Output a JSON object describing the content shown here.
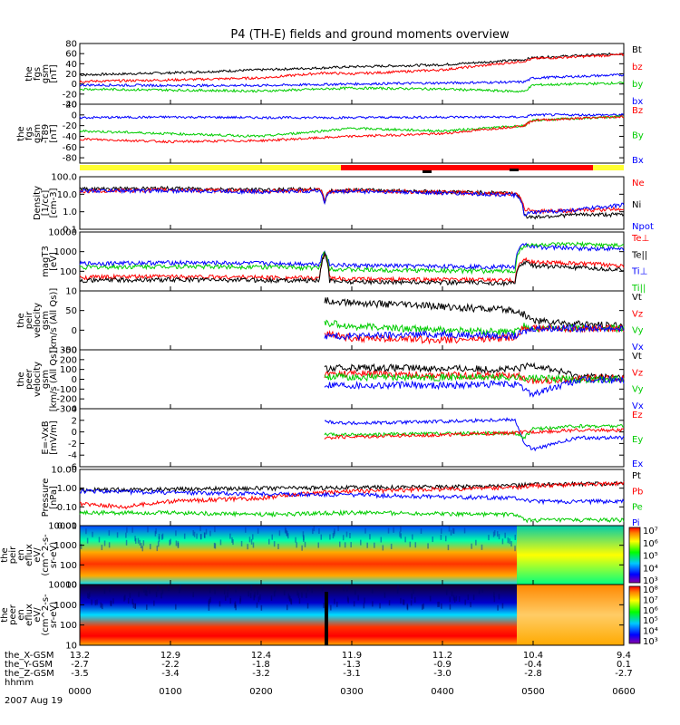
{
  "chart_data": {
    "type": "line",
    "title": "P4 (TH-E) fields and ground moments overview",
    "x_ticks": [
      "0000",
      "0100",
      "0200",
      "0300",
      "0400",
      "0500",
      "0600"
    ],
    "x_label_rows": [
      {
        "name": "the_X-GSM",
        "values": [
          "13.2",
          "12.9",
          "12.4",
          "11.9",
          "11.2",
          "10.4",
          "9.4"
        ]
      },
      {
        "name": "the_Y-GSM",
        "values": [
          "-2.7",
          "-2.2",
          "-1.8",
          "-1.3",
          "-0.9",
          "-0.4",
          "0.1"
        ]
      },
      {
        "name": "the_Z-GSM",
        "values": [
          "-3.5",
          "-3.4",
          "-3.2",
          "-3.1",
          "-3.0",
          "-2.8",
          "-2.7"
        ]
      },
      {
        "name": "hhmm",
        "values": []
      }
    ],
    "date": "2007 Aug 19",
    "panels": [
      {
        "key": "fgs_gsm",
        "ylabel": [
          "the",
          "fgs",
          "gsm",
          "[nT]"
        ],
        "ylim": [
          -40,
          80
        ],
        "yticks": [
          "80",
          "60",
          "40",
          "20",
          "0",
          "-20",
          "-40"
        ],
        "legend": [
          {
            "text": "Bt",
            "color": "#000000"
          },
          {
            "text": "bz",
            "color": "#ff0000"
          },
          {
            "text": "by",
            "color": "#00cc00"
          },
          {
            "text": "bx",
            "color": "#0000ff"
          }
        ]
      },
      {
        "key": "fgs_t89",
        "ylabel": [
          "the",
          "fgs",
          "gsm",
          "-T89",
          "[nT]"
        ],
        "ylim": [
          -90,
          20
        ],
        "yticks": [
          "20",
          "0",
          "-20",
          "-40",
          "-60",
          "-80"
        ],
        "legend": [
          {
            "text": "Bz",
            "color": "#ff0000"
          },
          {
            "text": "By",
            "color": "#00cc00"
          },
          {
            "text": "Bx",
            "color": "#0000ff"
          }
        ]
      },
      {
        "key": "density",
        "ylabel": [
          "Density",
          "[1/cc]",
          "[cm-3]"
        ],
        "log": true,
        "ylim": [
          0.1,
          100
        ],
        "yticks": [
          "100.0",
          "10.0",
          "1.0",
          "0.1"
        ],
        "legend": [
          {
            "text": "Ne",
            "color": "#ff0000"
          },
          {
            "text": "Ni",
            "color": "#000000"
          },
          {
            "text": "Npot",
            "color": "#0000ff"
          }
        ]
      },
      {
        "key": "temperature",
        "ylabel": [
          "magT3",
          "[eV]"
        ],
        "log": true,
        "ylim": [
          10,
          10000
        ],
        "yticks": [
          "10000",
          "1000",
          "100",
          "10"
        ],
        "legend": [
          {
            "text": "Te⊥",
            "color": "#ff0000"
          },
          {
            "text": "Te||",
            "color": "#000000"
          },
          {
            "text": "Ti⊥",
            "color": "#0000ff"
          },
          {
            "text": "Ti||",
            "color": "#00cc00"
          }
        ]
      },
      {
        "key": "peir_velocity",
        "ylabel": [
          "the",
          "peir",
          "velocity",
          "gsm",
          "[km/s (All Qs)]"
        ],
        "ylim": [
          -50,
          100
        ],
        "yticks": [
          "50",
          "0",
          "-50"
        ],
        "legend": [
          {
            "text": "Vt",
            "color": "#000000"
          },
          {
            "text": "Vz",
            "color": "#ff0000"
          },
          {
            "text": "Vy",
            "color": "#00cc00"
          },
          {
            "text": "Vx",
            "color": "#0000ff"
          }
        ]
      },
      {
        "key": "peer_velocity",
        "ylabel": [
          "the",
          "peer",
          "velocity",
          "gsm",
          "[km/s (All Qs)]"
        ],
        "ylim": [
          -300,
          300
        ],
        "yticks": [
          "300",
          "200",
          "100",
          "0",
          "-100",
          "-200",
          "-300"
        ],
        "legend": [
          {
            "text": "Vt",
            "color": "#000000"
          },
          {
            "text": "Vz",
            "color": "#ff0000"
          },
          {
            "text": "Vy",
            "color": "#00cc00"
          },
          {
            "text": "Vx",
            "color": "#0000ff"
          }
        ]
      },
      {
        "key": "e_field",
        "ylabel": [
          "E=-VxB",
          "[mV/m]"
        ],
        "ylim": [
          -6,
          4
        ],
        "yticks": [
          "4",
          "2",
          "0",
          "-2",
          "-4",
          "-6"
        ],
        "legend": [
          {
            "text": "Ez",
            "color": "#ff0000"
          },
          {
            "text": "Ey",
            "color": "#00cc00"
          },
          {
            "text": "Ex",
            "color": "#0000ff"
          }
        ]
      },
      {
        "key": "pressure",
        "ylabel": [
          "Pressure",
          "[nPa]"
        ],
        "log": true,
        "ylim": [
          0.01,
          10
        ],
        "yticks": [
          "10.00",
          "1.00",
          "0.10",
          "0.01"
        ],
        "legend": [
          {
            "text": "Pt",
            "color": "#000000"
          },
          {
            "text": "Pb",
            "color": "#ff0000"
          },
          {
            "text": "Pe",
            "color": "#00cc00"
          },
          {
            "text": "Pi",
            "color": "#0000ff"
          }
        ]
      },
      {
        "key": "peir_en_eflux",
        "ylabel": [
          "the",
          "peir",
          "en",
          "eflux",
          "eV/",
          "(cm^2-s-",
          "sr-eV)"
        ],
        "log": true,
        "ylim": [
          10,
          10000
        ],
        "yticks": [
          "10000",
          "1000",
          "100",
          "10"
        ],
        "colorbar": [
          "10⁷",
          "10⁶",
          "10⁵",
          "10⁴",
          "10³"
        ]
      },
      {
        "key": "peer_en_eflux",
        "ylabel": [
          "the",
          "peer",
          "en",
          "eflux",
          "eV/",
          "(cm^2-s-",
          "sr-eV)"
        ],
        "log": true,
        "ylim": [
          10,
          10000
        ],
        "yticks": [
          "10000",
          "1000",
          "100",
          "10"
        ],
        "colorbar": [
          "10⁸",
          "10⁷",
          "10⁶",
          "10⁵",
          "10⁴",
          "10³"
        ]
      }
    ],
    "series_profiles": {
      "fgs_gsm": [
        {
          "color": "#000000",
          "x": [
            0,
            1,
            2,
            2.7,
            3,
            4,
            4.9,
            5,
            6
          ],
          "y": [
            18,
            22,
            28,
            32,
            34,
            38,
            48,
            52,
            60
          ]
        },
        {
          "color": "#ff0000",
          "x": [
            0,
            1,
            2,
            2.7,
            3,
            4,
            4.9,
            5,
            6
          ],
          "y": [
            5,
            8,
            12,
            22,
            20,
            28,
            45,
            50,
            58
          ]
        },
        {
          "color": "#0000ff",
          "x": [
            0,
            1,
            2,
            3,
            4,
            4.9,
            5,
            6
          ],
          "y": [
            -2,
            -3,
            -3,
            0,
            2,
            4,
            12,
            18
          ]
        },
        {
          "color": "#00cc00",
          "x": [
            0,
            1,
            2,
            3,
            4,
            4.9,
            5,
            6
          ],
          "y": [
            -10,
            -12,
            -14,
            -8,
            -10,
            -15,
            -2,
            2
          ]
        }
      ],
      "fgs_t89": [
        {
          "color": "#0000ff",
          "x": [
            0,
            1,
            2,
            3,
            4,
            4.9,
            5,
            6
          ],
          "y": [
            -5,
            -4,
            -5,
            -5,
            -4,
            -4,
            0,
            0
          ]
        },
        {
          "color": "#00cc00",
          "x": [
            0,
            1,
            2,
            3,
            4,
            4.9,
            5,
            6
          ],
          "y": [
            -30,
            -35,
            -40,
            -25,
            -30,
            -20,
            -10,
            -3
          ]
        },
        {
          "color": "#ff0000",
          "x": [
            0,
            1,
            2,
            3,
            4,
            4.9,
            5,
            6
          ],
          "y": [
            -45,
            -50,
            -48,
            -40,
            -35,
            -20,
            -10,
            -3
          ]
        }
      ],
      "density": [
        {
          "color": "#000000",
          "x": [
            0,
            1,
            2,
            2.65,
            2.7,
            2.75,
            3,
            4,
            4.8,
            4.9,
            5,
            5.5,
            6
          ],
          "y": [
            20,
            22,
            18,
            20,
            3,
            15,
            18,
            14,
            12,
            0.6,
            0.5,
            0.7,
            0.7
          ]
        },
        {
          "color": "#ff0000",
          "x": [
            0,
            1,
            2,
            2.65,
            2.7,
            2.75,
            3,
            4,
            4.8,
            4.9,
            5,
            5.5,
            6
          ],
          "y": [
            15,
            18,
            15,
            18,
            3,
            14,
            17,
            13,
            11,
            1.5,
            1.1,
            1.2,
            1.5
          ]
        },
        {
          "color": "#0000ff",
          "x": [
            0,
            1,
            2,
            2.65,
            2.7,
            2.75,
            3,
            4,
            4.8,
            4.9,
            5,
            5.5,
            6
          ],
          "y": [
            16,
            16,
            14,
            16,
            3,
            13,
            15,
            12,
            9,
            0.7,
            0.9,
            1.3,
            2.5
          ]
        }
      ],
      "temperature": [
        {
          "color": "#0000ff",
          "x": [
            0,
            1,
            2,
            2.65,
            2.7,
            2.75,
            3,
            4,
            4.8,
            4.9,
            5,
            5.5,
            6
          ],
          "y": [
            250,
            280,
            260,
            240,
            1100,
            220,
            200,
            180,
            170,
            2500,
            1800,
            1500,
            1400
          ]
        },
        {
          "color": "#00cc00",
          "x": [
            0,
            1,
            2,
            2.65,
            2.7,
            2.75,
            3,
            4,
            4.8,
            4.9,
            5,
            5.5,
            6
          ],
          "y": [
            160,
            180,
            170,
            150,
            900,
            140,
            120,
            110,
            100,
            2000,
            2200,
            2400,
            2000
          ]
        },
        {
          "color": "#ff0000",
          "x": [
            0,
            1,
            2,
            2.65,
            2.7,
            2.75,
            3,
            4,
            4.8,
            4.9,
            5,
            5.5,
            6
          ],
          "y": [
            50,
            55,
            50,
            45,
            800,
            45,
            40,
            38,
            35,
            400,
            300,
            250,
            200
          ]
        },
        {
          "color": "#000000",
          "x": [
            0,
            1,
            2,
            2.65,
            2.7,
            2.75,
            3,
            4,
            4.8,
            4.9,
            5,
            5.5,
            6
          ],
          "y": [
            35,
            38,
            36,
            34,
            700,
            34,
            30,
            28,
            25,
            300,
            200,
            150,
            120
          ]
        }
      ],
      "peir_velocity": [
        {
          "color": "#000000",
          "x": [
            2.7,
            3,
            4,
            4.8,
            4.9,
            5,
            5.5,
            6
          ],
          "y": [
            75,
            70,
            60,
            50,
            40,
            25,
            15,
            10
          ]
        },
        {
          "color": "#00cc00",
          "x": [
            2.7,
            3,
            4,
            4.8,
            4.9,
            5,
            5.5,
            6
          ],
          "y": [
            20,
            10,
            0,
            -5,
            10,
            5,
            5,
            5
          ]
        },
        {
          "color": "#ff0000",
          "x": [
            2.7,
            3,
            4,
            4.8,
            4.9,
            5,
            5.5,
            6
          ],
          "y": [
            -10,
            -20,
            -25,
            -20,
            10,
            5,
            3,
            5
          ]
        },
        {
          "color": "#0000ff",
          "x": [
            2.7,
            3,
            4,
            4.8,
            4.9,
            5,
            5.5,
            6
          ],
          "y": [
            -15,
            -15,
            -10,
            -15,
            -5,
            5,
            5,
            5
          ]
        }
      ],
      "peer_velocity": [
        {
          "color": "#000000",
          "x": [
            2.7,
            3,
            4,
            4.8,
            5,
            5.5,
            6
          ],
          "y": [
            100,
            120,
            110,
            100,
            150,
            30,
            20
          ]
        },
        {
          "color": "#ff0000",
          "x": [
            2.7,
            3,
            4,
            4.8,
            5,
            5.5,
            6
          ],
          "y": [
            50,
            60,
            40,
            40,
            -20,
            10,
            10
          ]
        },
        {
          "color": "#00cc00",
          "x": [
            2.7,
            3,
            4,
            4.8,
            5,
            5.5,
            6
          ],
          "y": [
            30,
            20,
            20,
            20,
            10,
            0,
            0
          ]
        },
        {
          "color": "#0000ff",
          "x": [
            2.7,
            3,
            4,
            4.8,
            5,
            5.5,
            6
          ],
          "y": [
            -50,
            -60,
            -60,
            -50,
            -150,
            -10,
            -10
          ]
        }
      ],
      "e_field": [
        {
          "color": "#0000ff",
          "x": [
            2.7,
            3,
            4,
            4.8,
            4.9,
            5,
            5.5,
            6
          ],
          "y": [
            1.8,
            1.5,
            1.8,
            2.2,
            -2,
            -3,
            -1,
            -1
          ]
        },
        {
          "color": "#00cc00",
          "x": [
            2.7,
            3,
            4,
            4.8,
            4.9,
            5,
            5.5,
            6
          ],
          "y": [
            -0.5,
            -0.5,
            -0.3,
            -0.2,
            -1,
            0.5,
            1,
            1
          ]
        },
        {
          "color": "#ff0000",
          "x": [
            2.7,
            3,
            4,
            4.8,
            4.9,
            5,
            5.5,
            6
          ],
          "y": [
            -1,
            -0.8,
            -0.5,
            -0.2,
            0,
            0,
            0.3,
            0.3
          ]
        }
      ],
      "pressure": [
        {
          "color": "#000000",
          "x": [
            0,
            1,
            2,
            3,
            4,
            4.8,
            5,
            6
          ],
          "y": [
            0.8,
            0.9,
            1.0,
            1.1,
            1.2,
            1.4,
            1.6,
            1.8
          ]
        },
        {
          "color": "#ff0000",
          "x": [
            0,
            0.5,
            1,
            2,
            2.7,
            3,
            4,
            4.8,
            5,
            6
          ],
          "y": [
            0.15,
            0.1,
            0.2,
            0.3,
            0.6,
            0.7,
            0.9,
            1.1,
            1.4,
            1.8
          ]
        },
        {
          "color": "#0000ff",
          "x": [
            0,
            1,
            2,
            3,
            4,
            4.8,
            4.9,
            5,
            6
          ],
          "y": [
            0.7,
            0.6,
            0.5,
            0.45,
            0.35,
            0.3,
            0.25,
            0.2,
            0.2
          ]
        },
        {
          "color": "#00cc00",
          "x": [
            0,
            1,
            2,
            3,
            4,
            4.8,
            4.9,
            5,
            6
          ],
          "y": [
            0.05,
            0.05,
            0.04,
            0.05,
            0.045,
            0.04,
            0.02,
            0.02,
            0.02
          ]
        }
      ]
    }
  }
}
